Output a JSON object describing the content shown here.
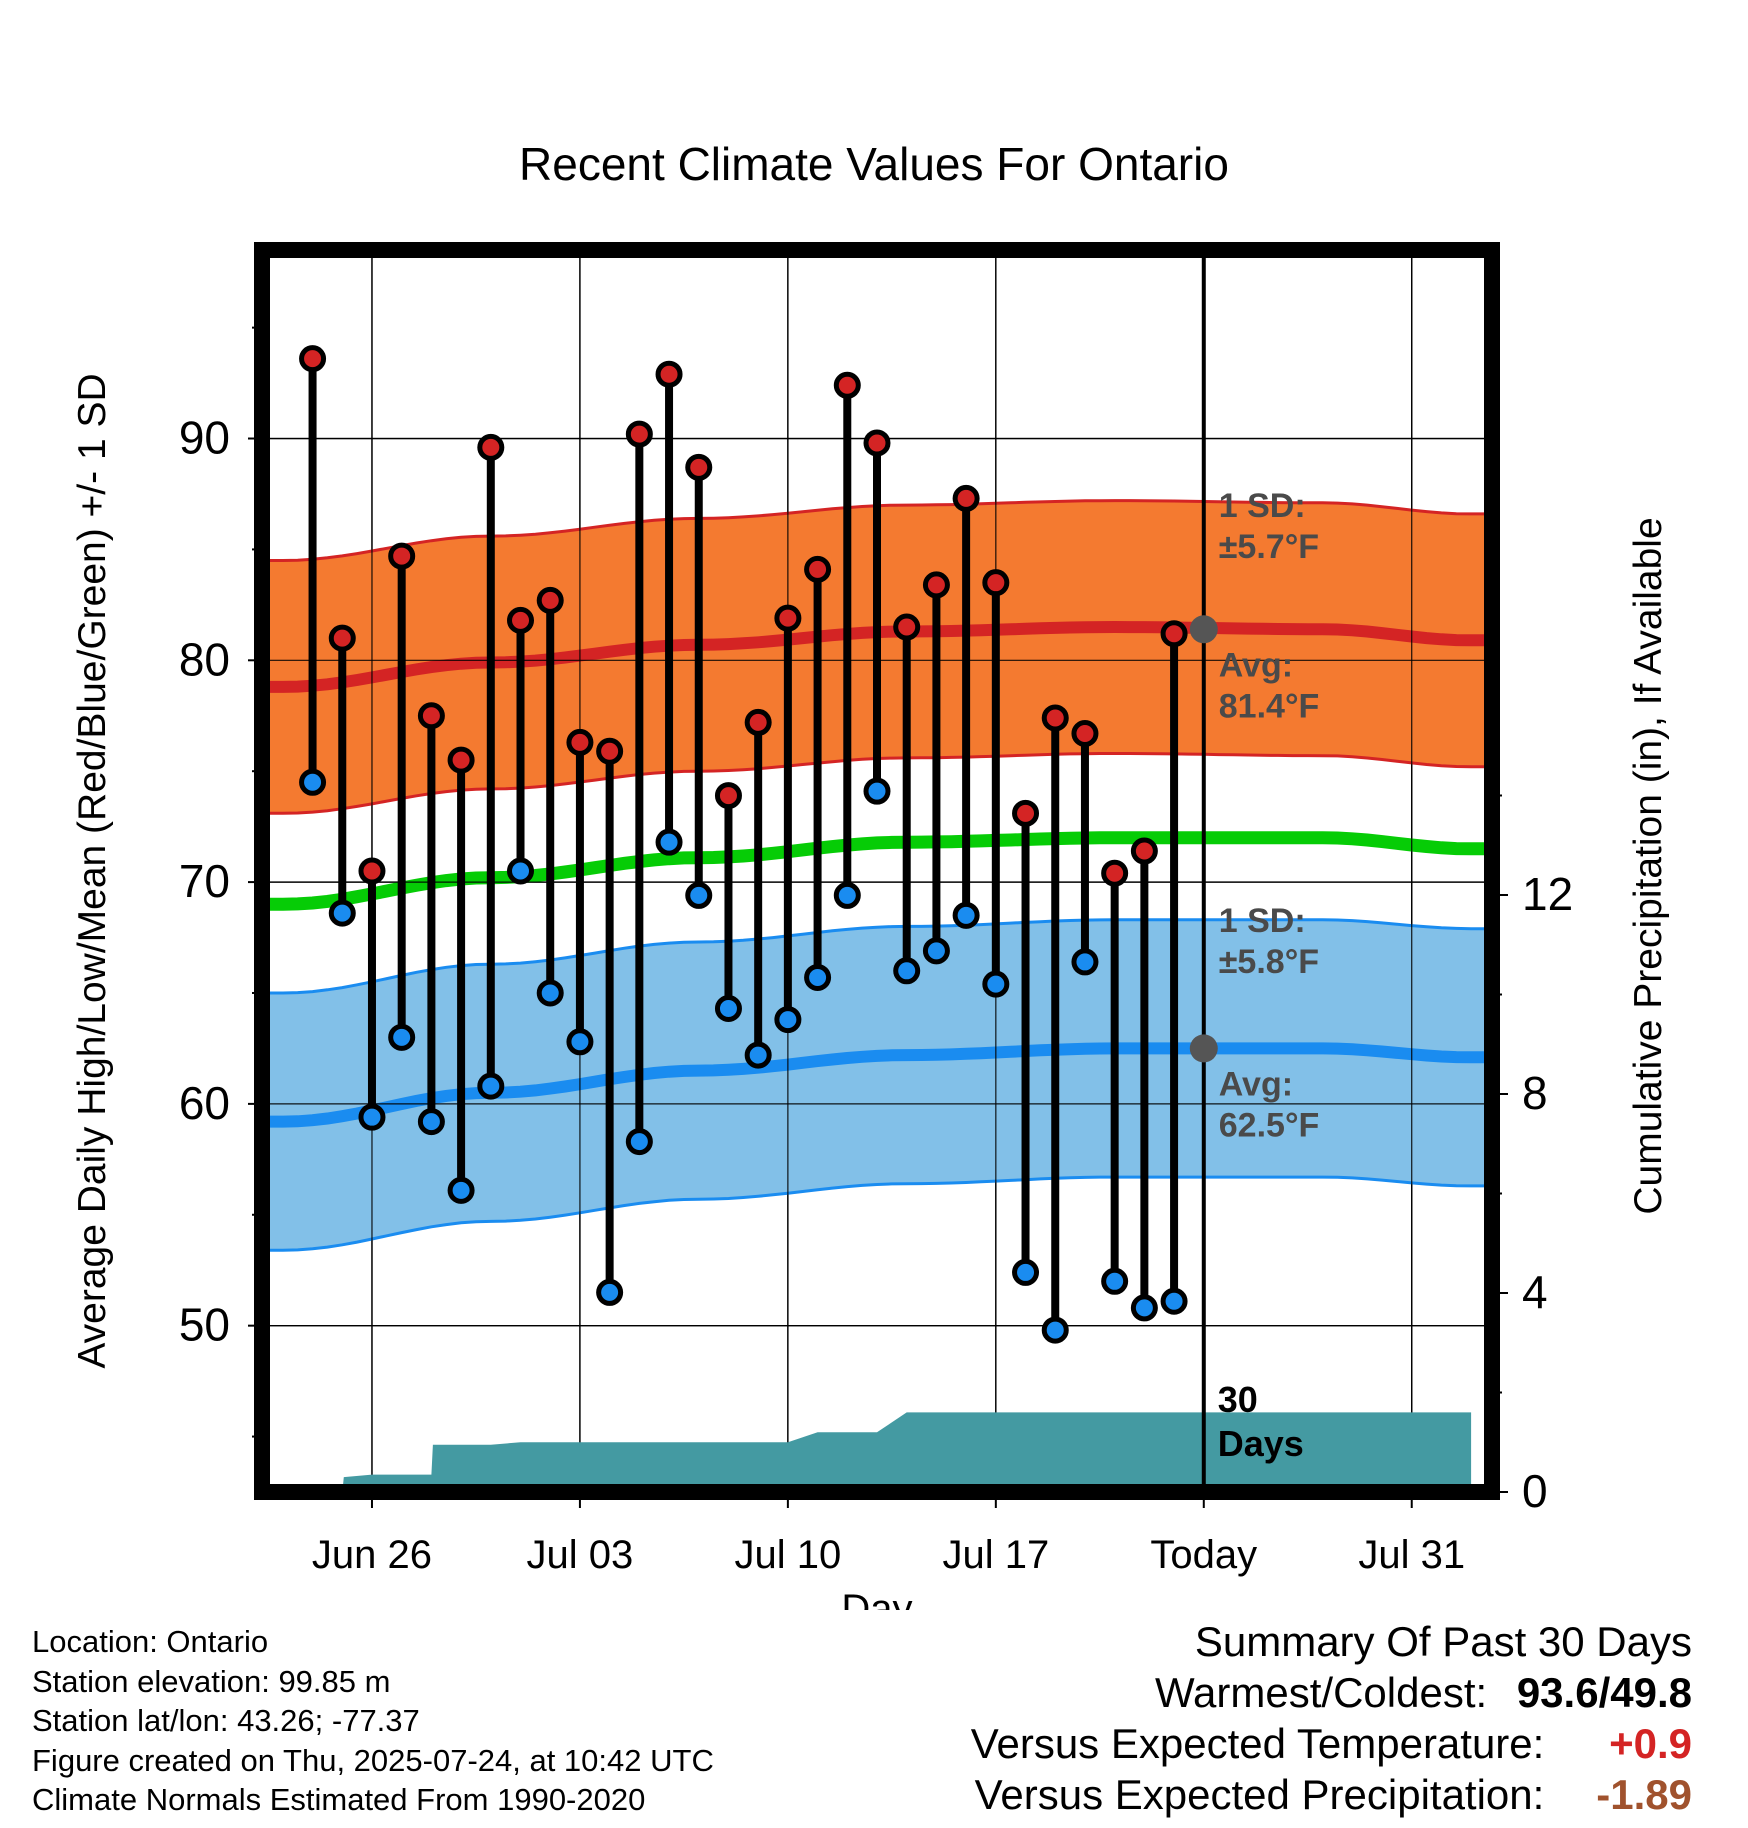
{
  "chart_data": {
    "type": "line",
    "title": "Recent Climate Values For Ontario",
    "xlabel": "Day",
    "ylabel": "Average Daily High/Low/Mean (Red/Blue/Green) +/- 1 SD",
    "y2label": "Cumulative Precipitation (in), If Available",
    "ylim": [
      42.5,
      98.5
    ],
    "y_ticks": [
      50,
      60,
      70,
      80,
      90
    ],
    "y2lim": [
      0,
      30
    ],
    "y2_ticks": [
      0,
      4,
      8,
      12
    ],
    "x_ticks": [
      {
        "day": 3,
        "label": "Jun 26"
      },
      {
        "day": 10,
        "label": "Jul 03"
      },
      {
        "day": 17,
        "label": "Jul 10"
      },
      {
        "day": 24,
        "label": "Jul 17"
      },
      {
        "day": 31,
        "label": "Today"
      },
      {
        "day": 38,
        "label": "Jul 31"
      }
    ],
    "xlim": [
      -0.5,
      40.5
    ],
    "today_day": 31,
    "window_label": "30\nDays",
    "daily_high": [
      93.6,
      81.0,
      70.5,
      84.7,
      77.5,
      75.5,
      89.6,
      81.8,
      82.7,
      76.3,
      75.9,
      90.2,
      92.9,
      88.7,
      73.9,
      77.2,
      81.9,
      84.1,
      92.4,
      89.8,
      81.5,
      83.4,
      87.3,
      83.5,
      73.1,
      77.4,
      76.7,
      70.4,
      71.4,
      81.2
    ],
    "daily_low": [
      74.5,
      68.6,
      59.4,
      63.0,
      59.2,
      56.1,
      60.8,
      70.5,
      65.0,
      62.8,
      51.5,
      58.3,
      71.8,
      69.4,
      64.3,
      62.2,
      63.8,
      65.7,
      69.4,
      74.1,
      66.0,
      66.9,
      68.5,
      65.4,
      52.4,
      49.8,
      66.4,
      52.0,
      50.8,
      51.1
    ],
    "normal_high": [
      78.8,
      79.9,
      80.7,
      81.3,
      81.5,
      81.4,
      80.9
    ],
    "normal_low": [
      59.2,
      60.5,
      61.5,
      62.2,
      62.5,
      62.5,
      62.1
    ],
    "normal_mean": [
      69.0,
      70.2,
      71.1,
      71.8,
      72.0,
      72.0,
      71.5
    ],
    "normal_x_days": [
      0,
      7,
      14,
      21,
      28,
      35,
      40
    ],
    "high_sd": 5.7,
    "low_sd": 5.8,
    "precip_cumulative": [
      0,
      0,
      0,
      0.3,
      0.35,
      0.35,
      0.35,
      0.95,
      0.95,
      0.95,
      1.0,
      1.0,
      1.0,
      1.0,
      1.0,
      1.0,
      1.0,
      1.0,
      1.0,
      1.0,
      1.2,
      1.2,
      1.2,
      1.6,
      1.6,
      1.6,
      1.6,
      1.6,
      1.6,
      1.6,
      1.6
    ],
    "precip_days": [
      0,
      1,
      2,
      2.05,
      3,
      4,
      5,
      5.05,
      6,
      7,
      8,
      9,
      10,
      11,
      12,
      13,
      14,
      15,
      16,
      17,
      18,
      19,
      20,
      21,
      22,
      23,
      24,
      25,
      26,
      27,
      40
    ],
    "annotations": {
      "high_sd": "1 SD:\n±5.7°F",
      "high_avg": "Avg:\n81.4°F",
      "low_sd": "1 SD:\n±5.8°F",
      "low_avg": "Avg:\n62.5°F",
      "today_high_avg": 81.4,
      "today_low_avg": 62.5
    },
    "colors": {
      "high_band": "#f47a30",
      "high_line": "#d42424",
      "low_band": "#82c0e8",
      "low_line": "#1a8cf0",
      "mean_line": "#06cc06",
      "precip": "#449aa2",
      "high_marker": "#d42424",
      "low_marker": "#1a8cf0",
      "annotation": "#4a4a4a"
    }
  },
  "info": {
    "location": "Location: Ontario",
    "elevation": "Station elevation: 99.85 m",
    "latlon": "Station lat/lon: 43.26; -77.37",
    "created": "Figure created on Thu, 2025-07-24, at 10:42 UTC",
    "normals": "Climate Normals Estimated From 1990-2020"
  },
  "summary": {
    "heading": "Summary Of Past 30 Days",
    "warmest_label": "Warmest/Coldest:",
    "warmest_value": "93.6",
    "coldest_value": "49.8",
    "temp_label": "Versus Expected Temperature:",
    "temp_value": "+0.9",
    "temp_color": "#d42424",
    "precip_label": "Versus Expected Precipitation:",
    "precip_value": "-1.89",
    "precip_color": "#a0522d"
  }
}
